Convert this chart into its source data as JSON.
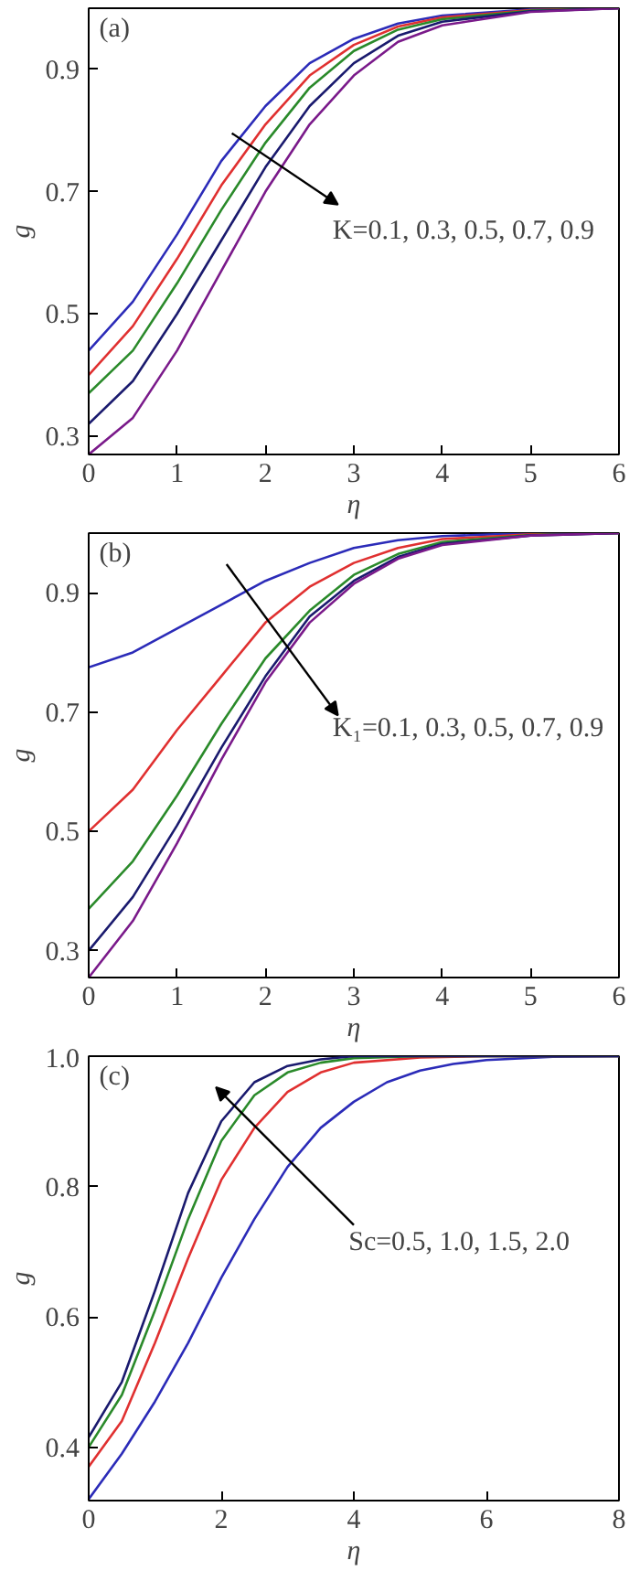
{
  "chart_data": [
    {
      "type": "line",
      "xlabel": "η",
      "ylabel": "g",
      "annotations": [
        "(a)",
        "K=0.1, 0.3, 0.5, 0.7, 0.9"
      ],
      "xlim": [
        0,
        6
      ],
      "ylim": [
        0.27,
        1.0
      ],
      "xticks": [
        0,
        1,
        2,
        3,
        4,
        5,
        6
      ],
      "yticks": [
        0.3,
        0.5,
        0.7,
        0.9
      ],
      "x": [
        0,
        0.5,
        1,
        1.5,
        2,
        2.5,
        3,
        3.5,
        4,
        5,
        6
      ],
      "series": [
        {
          "color": "#2b2bb8",
          "values": [
            0.44,
            0.52,
            0.63,
            0.75,
            0.84,
            0.91,
            0.95,
            0.975,
            0.988,
            0.998,
            1.0
          ]
        },
        {
          "color": "#e03030",
          "values": [
            0.4,
            0.48,
            0.59,
            0.71,
            0.81,
            0.89,
            0.94,
            0.97,
            0.985,
            0.997,
            1.0
          ]
        },
        {
          "color": "#2a8a2a",
          "values": [
            0.37,
            0.44,
            0.55,
            0.67,
            0.78,
            0.87,
            0.93,
            0.965,
            0.982,
            0.996,
            1.0
          ]
        },
        {
          "color": "#1a1a6e",
          "values": [
            0.32,
            0.39,
            0.5,
            0.62,
            0.74,
            0.84,
            0.91,
            0.955,
            0.978,
            0.995,
            1.0
          ]
        },
        {
          "color": "#7a1a8a",
          "values": [
            0.27,
            0.33,
            0.44,
            0.57,
            0.7,
            0.81,
            0.89,
            0.945,
            0.972,
            0.994,
            1.0
          ]
        }
      ]
    },
    {
      "type": "line",
      "xlabel": "η",
      "ylabel": "g",
      "annotations": [
        "(b)",
        "K₁=0.1, 0.3, 0.5, 0.7, 0.9"
      ],
      "xlim": [
        0,
        6
      ],
      "ylim": [
        0.255,
        1.0
      ],
      "xticks": [
        0,
        1,
        2,
        3,
        4,
        5,
        6
      ],
      "yticks": [
        0.3,
        0.5,
        0.7,
        0.9
      ],
      "x": [
        0,
        0.5,
        1,
        1.5,
        2,
        2.5,
        3,
        3.5,
        4,
        5,
        6
      ],
      "series": [
        {
          "color": "#2b2bb8",
          "values": [
            0.775,
            0.8,
            0.84,
            0.88,
            0.92,
            0.95,
            0.975,
            0.988,
            0.995,
            1.0,
            1.0
          ]
        },
        {
          "color": "#e03030",
          "values": [
            0.5,
            0.57,
            0.67,
            0.76,
            0.85,
            0.91,
            0.95,
            0.975,
            0.99,
            0.998,
            1.0
          ]
        },
        {
          "color": "#2a8a2a",
          "values": [
            0.37,
            0.45,
            0.56,
            0.68,
            0.79,
            0.87,
            0.93,
            0.965,
            0.985,
            0.997,
            1.0
          ]
        },
        {
          "color": "#1a1a6e",
          "values": [
            0.3,
            0.39,
            0.51,
            0.64,
            0.76,
            0.86,
            0.92,
            0.96,
            0.982,
            0.996,
            1.0
          ]
        },
        {
          "color": "#7a1a8a",
          "values": [
            0.255,
            0.35,
            0.48,
            0.62,
            0.75,
            0.85,
            0.915,
            0.957,
            0.98,
            0.996,
            1.0
          ]
        }
      ]
    },
    {
      "type": "line",
      "xlabel": "η",
      "ylabel": "g",
      "annotations": [
        "(c)",
        "Sc=0.5, 1.0, 1.5, 2.0"
      ],
      "xlim": [
        0,
        8
      ],
      "ylim": [
        0.318,
        1.0
      ],
      "xticks": [
        0,
        2,
        4,
        6,
        8
      ],
      "yticks": [
        0.4,
        0.6,
        0.8,
        {
          "value": 1.0,
          "label": "1.0"
        }
      ],
      "series": [
        {
          "color": "#2b2bb8",
          "x": [
            0,
            0.5,
            1,
            1.5,
            2,
            2.5,
            3,
            3.5,
            4,
            4.5,
            5,
            5.5,
            6,
            7,
            8
          ],
          "values": [
            0.32,
            0.39,
            0.47,
            0.56,
            0.66,
            0.75,
            0.83,
            0.89,
            0.93,
            0.96,
            0.978,
            0.988,
            0.994,
            0.999,
            1.0
          ]
        },
        {
          "color": "#e03030",
          "x": [
            0,
            0.5,
            1,
            1.5,
            2,
            2.5,
            3,
            3.5,
            4,
            5,
            6,
            8
          ],
          "values": [
            0.37,
            0.44,
            0.56,
            0.69,
            0.81,
            0.89,
            0.945,
            0.975,
            0.99,
            0.998,
            1.0,
            1.0
          ]
        },
        {
          "color": "#2a8a2a",
          "x": [
            0,
            0.5,
            1,
            1.5,
            2,
            2.5,
            3,
            3.5,
            4,
            5,
            8
          ],
          "values": [
            0.4,
            0.48,
            0.61,
            0.75,
            0.87,
            0.94,
            0.975,
            0.99,
            0.997,
            1.0,
            1.0
          ]
        },
        {
          "color": "#1a1a6e",
          "x": [
            0,
            0.5,
            1,
            1.5,
            2,
            2.5,
            3,
            3.5,
            4,
            6,
            8
          ],
          "values": [
            0.415,
            0.5,
            0.64,
            0.79,
            0.9,
            0.96,
            0.985,
            0.995,
            1.0,
            1.0,
            1.0
          ]
        }
      ]
    }
  ]
}
